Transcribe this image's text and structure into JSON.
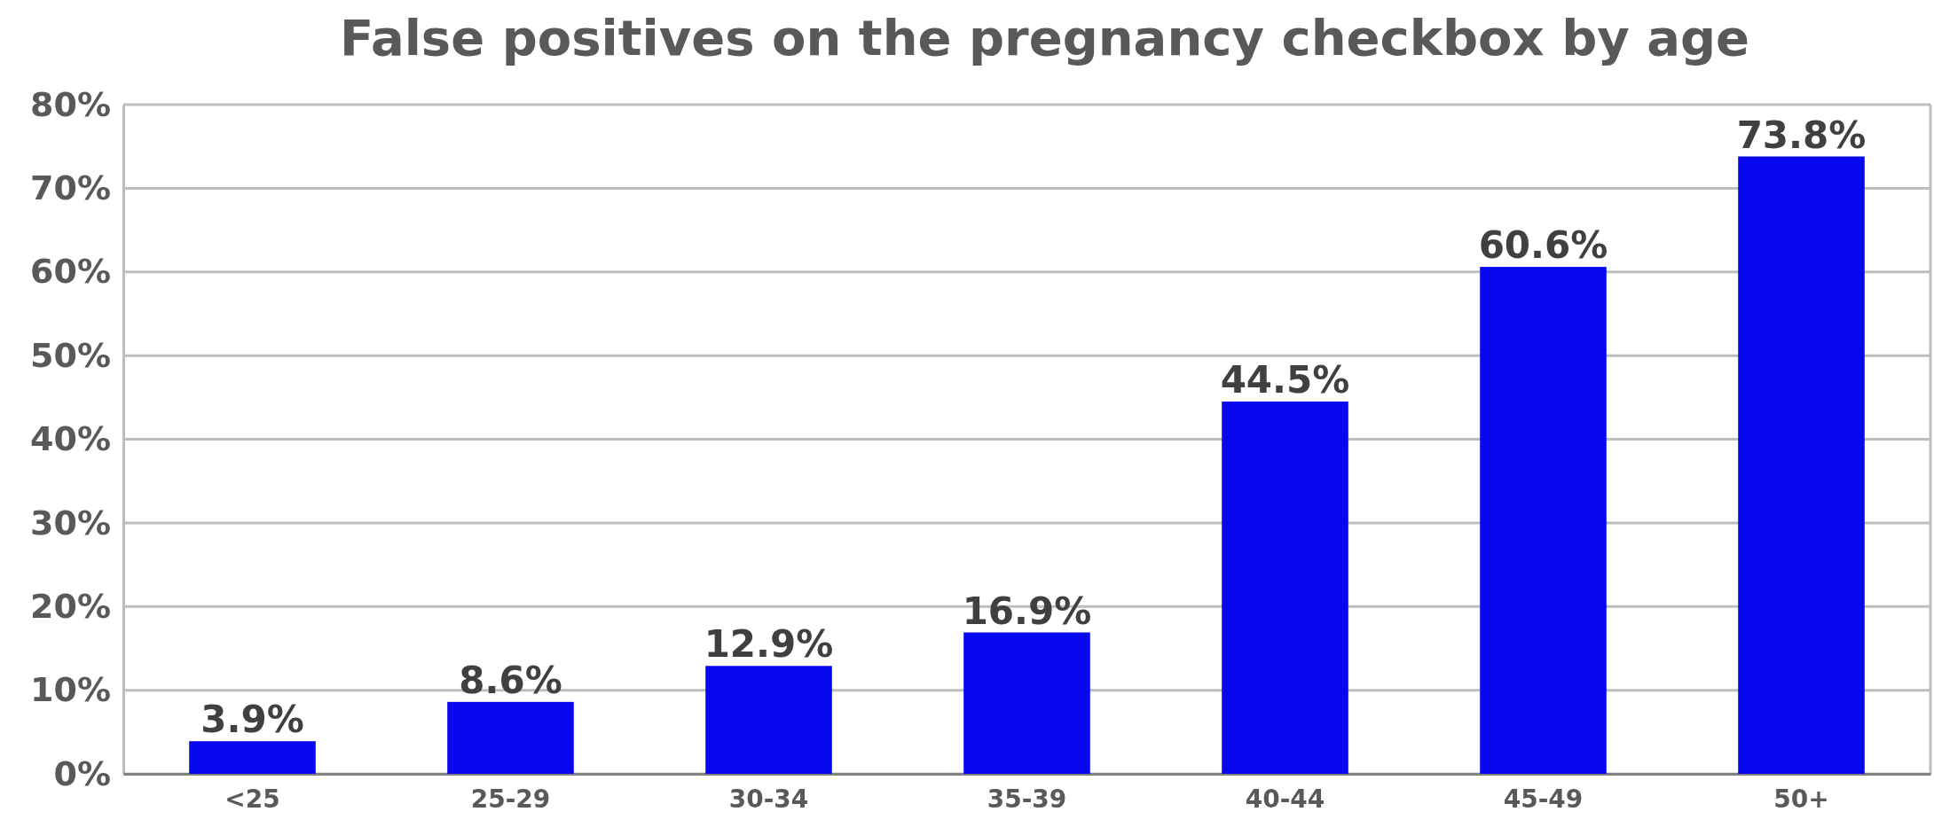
{
  "chart_data": {
    "type": "bar",
    "title": "False positives on the pregnancy checkbox by age",
    "categories": [
      "<25",
      "25-29",
      "30-34",
      "35-39",
      "40-44",
      "45-49",
      "50+"
    ],
    "values": [
      3.9,
      8.6,
      12.9,
      16.9,
      44.5,
      60.6,
      73.8
    ],
    "value_labels": [
      "3.9%",
      "8.6%",
      "12.9%",
      "16.9%",
      "44.5%",
      "60.6%",
      "73.8%"
    ],
    "color": "#0808ee",
    "ylim": [
      0,
      80
    ],
    "yticks": [
      {
        "value": 0,
        "label": "0%"
      },
      {
        "value": 10,
        "label": "10%"
      },
      {
        "value": 20,
        "label": "20%"
      },
      {
        "value": 30,
        "label": "30%"
      },
      {
        "value": 40,
        "label": "40%"
      },
      {
        "value": 50,
        "label": "50%"
      },
      {
        "value": 60,
        "label": "60%"
      },
      {
        "value": 70,
        "label": "70%"
      },
      {
        "value": 80,
        "label": "80%"
      }
    ],
    "grid": "y"
  }
}
